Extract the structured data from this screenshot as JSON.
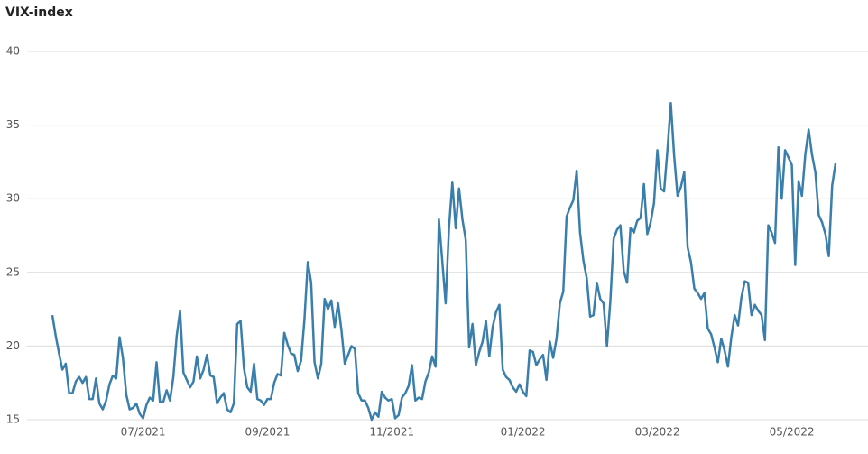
{
  "chart_data": {
    "type": "line",
    "title": "VIX-index",
    "categories": [
      null,
      null,
      null,
      null,
      null,
      null,
      null,
      null,
      null,
      null,
      null,
      null,
      null,
      null,
      null,
      null,
      null,
      null,
      null,
      null,
      null,
      null,
      null,
      null,
      null,
      null,
      null,
      "07/2021",
      null,
      null,
      null,
      null,
      null,
      null,
      null,
      null,
      null,
      null,
      null,
      null,
      null,
      null,
      null,
      null,
      null,
      null,
      null,
      null,
      null,
      null,
      null,
      null,
      null,
      null,
      null,
      null,
      null,
      null,
      null,
      null,
      null,
      null,
      null,
      null,
      "09/2021",
      null,
      null,
      null,
      null,
      null,
      null,
      null,
      null,
      null,
      null,
      null,
      null,
      null,
      null,
      null,
      null,
      null,
      null,
      null,
      null,
      null,
      null,
      null,
      null,
      null,
      null,
      null,
      null,
      null,
      null,
      null,
      null,
      null,
      null,
      null,
      null,
      "11/2021",
      null,
      null,
      null,
      null,
      null,
      null,
      null,
      null,
      null,
      null,
      null,
      null,
      null,
      null,
      null,
      null,
      null,
      null,
      null,
      null,
      null,
      null,
      null,
      null,
      null,
      null,
      null,
      null,
      null,
      null,
      null,
      null,
      null,
      null,
      null,
      null,
      null,
      null,
      "01/2022",
      null,
      null,
      null,
      null,
      null,
      null,
      null,
      null,
      null,
      null,
      null,
      null,
      null,
      null,
      null,
      null,
      null,
      null,
      null,
      null,
      null,
      null,
      null,
      null,
      null,
      null,
      null,
      null,
      null,
      null,
      null,
      null,
      null,
      null,
      null,
      null,
      null,
      null,
      null,
      "03/2022",
      null,
      null,
      null,
      null,
      null,
      null,
      null,
      null,
      null,
      null,
      null,
      null,
      null,
      null,
      null,
      null,
      null,
      null,
      null,
      null,
      null,
      null,
      null,
      null,
      null,
      null,
      null,
      null,
      null,
      null,
      null,
      null,
      null,
      null,
      null,
      null,
      null,
      null,
      null,
      "05/2022",
      null,
      null,
      null,
      null,
      null,
      null,
      null,
      null,
      null,
      null,
      null,
      null,
      null
    ],
    "values": [
      22.1,
      20.7,
      19.5,
      18.4,
      18.8,
      16.8,
      16.8,
      17.6,
      17.9,
      17.5,
      17.9,
      16.4,
      16.4,
      17.8,
      16.1,
      15.7,
      16.3,
      17.4,
      18.0,
      17.8,
      20.6,
      19.2,
      16.7,
      15.7,
      15.8,
      16.1,
      15.4,
      15.1,
      16.0,
      16.5,
      16.3,
      18.9,
      16.2,
      16.2,
      17.0,
      16.3,
      17.9,
      20.7,
      22.4,
      18.2,
      17.7,
      17.2,
      17.6,
      19.3,
      17.8,
      18.4,
      19.4,
      18.0,
      17.9,
      16.1,
      16.5,
      16.8,
      15.7,
      15.5,
      16.1,
      21.5,
      21.7,
      18.5,
      17.2,
      16.9,
      18.8,
      16.4,
      16.3,
      16.0,
      16.4,
      16.4,
      17.5,
      18.1,
      18.0,
      20.9,
      20.1,
      19.5,
      19.4,
      18.3,
      19.0,
      21.8,
      25.7,
      24.3,
      18.9,
      17.8,
      18.8,
      23.2,
      22.5,
      23.1,
      21.3,
      22.9,
      21.1,
      18.8,
      19.4,
      20.0,
      19.8,
      16.8,
      16.3,
      16.3,
      15.8,
      15.0,
      15.5,
      15.2,
      16.9,
      16.5,
      16.3,
      16.4,
      15.1,
      15.3,
      16.5,
      16.8,
      17.3,
      18.7,
      16.3,
      16.5,
      16.4,
      17.6,
      18.2,
      19.3,
      18.6,
      28.6,
      25.8,
      22.9,
      28.0,
      31.1,
      28.0,
      30.7,
      28.6,
      27.2,
      19.9,
      21.5,
      18.7,
      19.6,
      20.3,
      21.7,
      19.3,
      21.3,
      22.3,
      22.8,
      18.4,
      17.9,
      17.7,
      17.2,
      16.9,
      17.4,
      16.9,
      16.6,
      19.7,
      19.6,
      18.7,
      19.1,
      19.4,
      17.7,
      20.3,
      19.2,
      20.5,
      22.9,
      23.7,
      28.8,
      29.4,
      29.9,
      31.9,
      27.7,
      25.8,
      24.6,
      22.0,
      22.1,
      24.3,
      23.2,
      22.9,
      20.0,
      23.0,
      27.3,
      27.9,
      28.2,
      25.1,
      24.3,
      28.0,
      27.7,
      28.5,
      28.7,
      31.0,
      27.6,
      28.4,
      29.7,
      33.3,
      30.7,
      30.5,
      33.3,
      36.5,
      32.9,
      30.2,
      30.8,
      31.8,
      26.7,
      25.7,
      23.9,
      23.6,
      23.2,
      23.6,
      21.2,
      20.8,
      19.9,
      18.9,
      20.5,
      19.7,
      18.6,
      20.6,
      22.1,
      21.4,
      23.3,
      24.4,
      24.3,
      22.1,
      22.8,
      22.4,
      22.1,
      20.4,
      28.2,
      27.7,
      27.0,
      33.5,
      30.0,
      33.3,
      32.8,
      32.3,
      25.5,
      31.2,
      30.2,
      33.0,
      34.7,
      33.0,
      31.8,
      28.9,
      28.4,
      27.6,
      26.1,
      30.9,
      32.4
    ],
    "color": "#3a7fac",
    "ylim": [
      15,
      40
    ],
    "yticks": [
      15,
      20,
      25,
      30,
      35,
      40
    ],
    "grid": true
  }
}
